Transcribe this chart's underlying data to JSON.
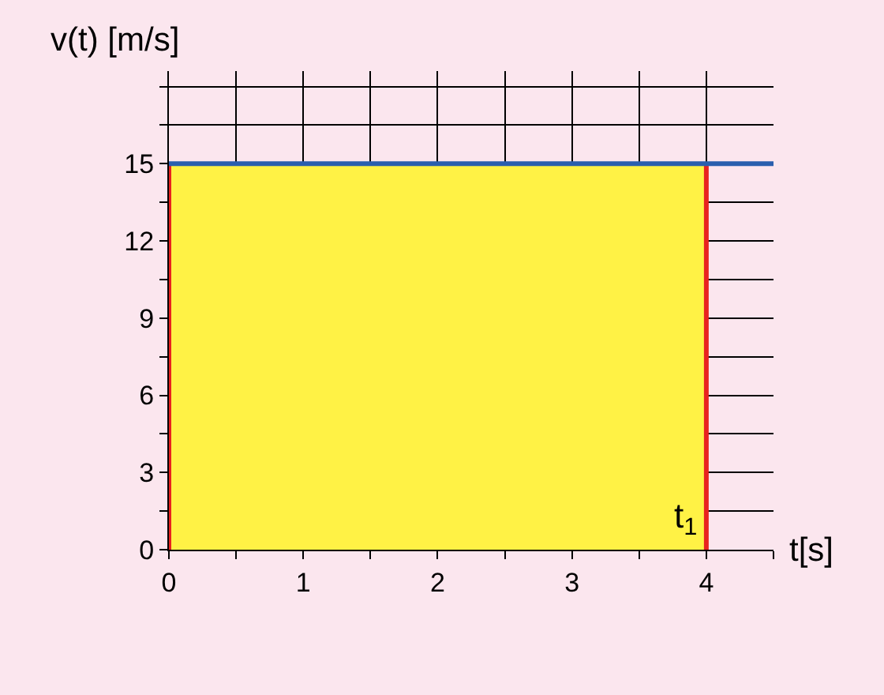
{
  "chart_data": {
    "type": "line",
    "xlabel": "t[s]",
    "ylabel": "v(t) [m/s]",
    "xlim": [
      0,
      4.5
    ],
    "ylim": [
      0,
      18.6
    ],
    "xticks": [
      0,
      {
        "value": 0.5,
        "label": null
      },
      1,
      {
        "value": 1.5,
        "label": null
      },
      2,
      {
        "value": 2.5,
        "label": null
      },
      3,
      {
        "value": 3.5,
        "label": null
      },
      4,
      {
        "value": 4.5,
        "label": null
      }
    ],
    "yticks": [
      0,
      {
        "value": 1.5,
        "label": null
      },
      3,
      {
        "value": 4.5,
        "label": null
      },
      6,
      {
        "value": 7.5,
        "label": null
      },
      9,
      {
        "value": 10.5,
        "label": null
      },
      12,
      {
        "value": 13.5,
        "label": null
      },
      15,
      {
        "value": 16.5,
        "label": null
      },
      {
        "value": 18,
        "label": null
      }
    ],
    "grid": true,
    "marker": "none",
    "series": [
      {
        "type": "area",
        "color": "#fff245",
        "x": [
          0,
          4
        ],
        "values": [
          15,
          15
        ]
      },
      {
        "color": "#e8231f",
        "x": [
          0,
          0
        ],
        "values": [
          0,
          15
        ]
      },
      {
        "color": "#e8231f",
        "x": [
          4,
          4
        ],
        "values": [
          0,
          15
        ]
      },
      {
        "color": "#2a5fae",
        "x": [
          0,
          4.5
        ],
        "values": [
          15,
          15
        ]
      }
    ],
    "annotations": [
      {
        "text": "t$_{1}$",
        "x": 4,
        "y": 1.2
      }
    ]
  }
}
